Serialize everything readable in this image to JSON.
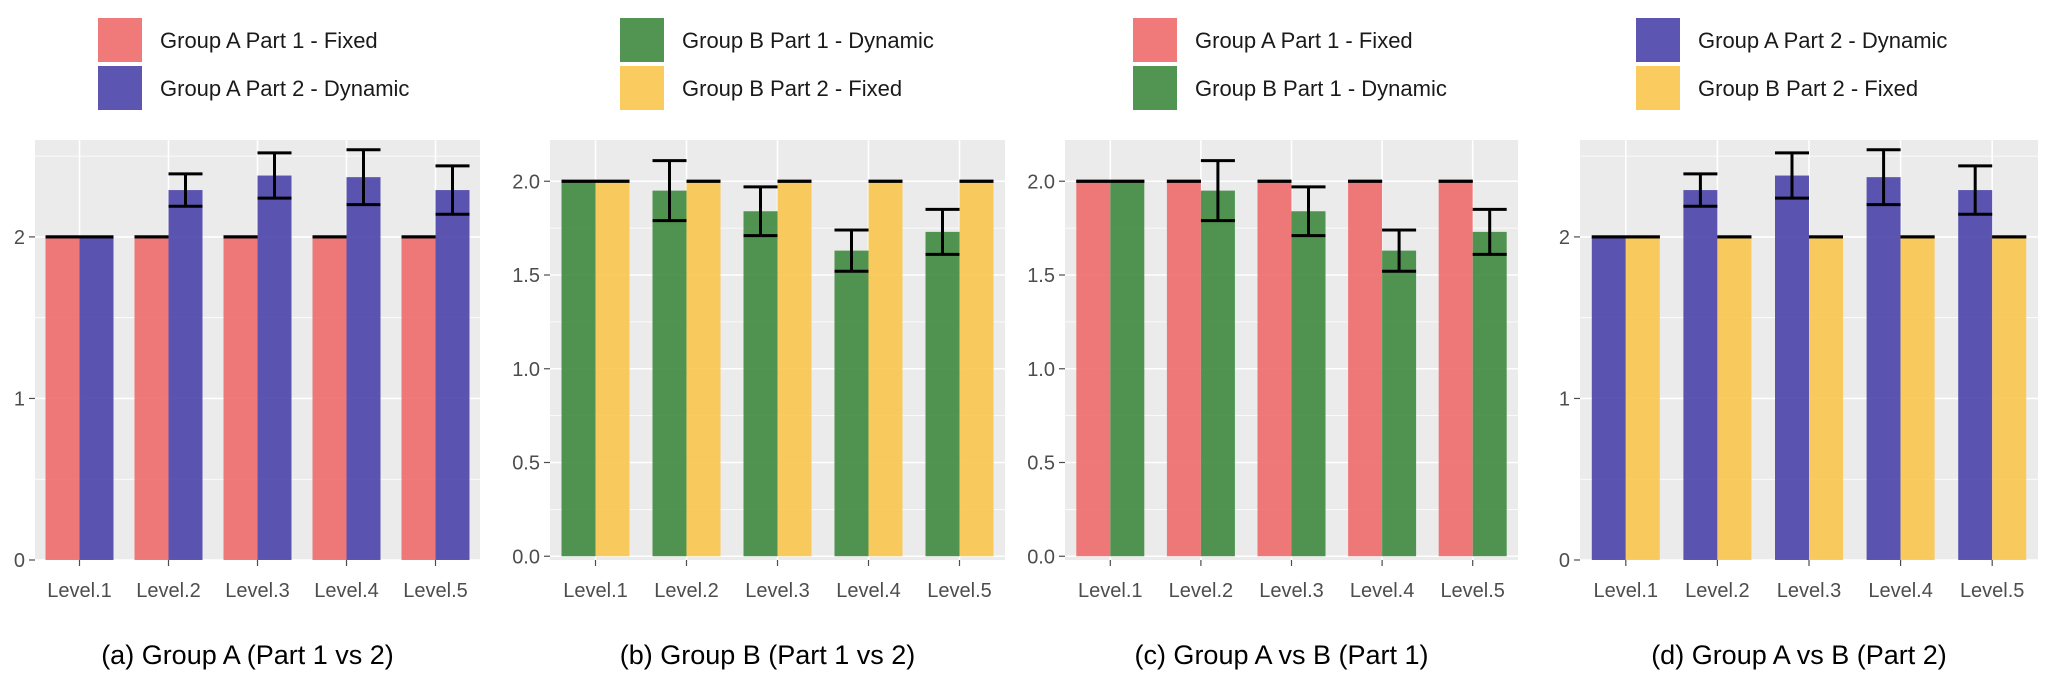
{
  "colors": {
    "a_fixed": "#ee6b6b",
    "a_dynamic": "#4a44aa",
    "b_dynamic": "#3f8a3f",
    "b_fixed": "#f9c74f"
  },
  "chart_data": [
    {
      "type": "bar",
      "caption": "(a) Group A (Part 1 vs 2)",
      "categories": [
        "Level.1",
        "Level.2",
        "Level.3",
        "Level.4",
        "Level.5"
      ],
      "ylim": [
        0,
        2.6
      ],
      "yticks": [
        0,
        1,
        2
      ],
      "ytick_labels": [
        "0",
        "1",
        "2"
      ],
      "grid": true,
      "legend_position": "top",
      "series": [
        {
          "name": "Group A Part 1 - Fixed",
          "color": "#ee6b6b",
          "values": [
            2,
            2,
            2,
            2,
            2
          ],
          "err": [
            0,
            0,
            0,
            0,
            0
          ]
        },
        {
          "name": "Group A Part 2 - Dynamic",
          "color": "#4a44aa",
          "values": [
            2,
            2.29,
            2.38,
            2.37,
            2.29
          ],
          "err": [
            0,
            0.1,
            0.14,
            0.17,
            0.15
          ]
        }
      ]
    },
    {
      "type": "bar",
      "caption": "(b) Group B (Part 1 vs 2)",
      "categories": [
        "Level.1",
        "Level.2",
        "Level.3",
        "Level.4",
        "Level.5"
      ],
      "ylim": [
        -0.02,
        2.22
      ],
      "yticks": [
        0,
        0.5,
        1,
        1.5,
        2
      ],
      "ytick_labels": [
        "0.0",
        "0.5",
        "1.0",
        "1.5",
        "2.0"
      ],
      "grid": true,
      "legend_position": "top",
      "series": [
        {
          "name": "Group B Part 1 - Dynamic",
          "color": "#3f8a3f",
          "values": [
            2,
            1.95,
            1.84,
            1.63,
            1.73
          ],
          "err": [
            0,
            0.16,
            0.13,
            0.11,
            0.12
          ]
        },
        {
          "name": "Group B Part 2 - Fixed",
          "color": "#f9c74f",
          "values": [
            2,
            2,
            2,
            2,
            2
          ],
          "err": [
            0,
            0,
            0,
            0,
            0
          ]
        }
      ]
    },
    {
      "type": "bar",
      "caption": "(c) Group A vs B (Part 1)",
      "categories": [
        "Level.1",
        "Level.2",
        "Level.3",
        "Level.4",
        "Level.5"
      ],
      "ylim": [
        -0.02,
        2.22
      ],
      "yticks": [
        0,
        0.5,
        1,
        1.5,
        2
      ],
      "ytick_labels": [
        "0.0",
        "0.5",
        "1.0",
        "1.5",
        "2.0"
      ],
      "grid": true,
      "legend_position": "top",
      "series": [
        {
          "name": "Group A Part 1 - Fixed",
          "color": "#ee6b6b",
          "values": [
            2,
            2,
            2,
            2,
            2
          ],
          "err": [
            0,
            0,
            0,
            0,
            0
          ]
        },
        {
          "name": "Group B Part 1 - Dynamic",
          "color": "#3f8a3f",
          "values": [
            2,
            1.95,
            1.84,
            1.63,
            1.73
          ],
          "err": [
            0,
            0.16,
            0.13,
            0.11,
            0.12
          ]
        }
      ]
    },
    {
      "type": "bar",
      "caption": "(d) Group A vs B (Part 2)",
      "categories": [
        "Level.1",
        "Level.2",
        "Level.3",
        "Level.4",
        "Level.5"
      ],
      "ylim": [
        0,
        2.6
      ],
      "yticks": [
        0,
        1,
        2
      ],
      "ytick_labels": [
        "0",
        "1",
        "2"
      ],
      "grid": true,
      "legend_position": "top",
      "series": [
        {
          "name": "Group A Part 2 - Dynamic",
          "color": "#4a44aa",
          "values": [
            2,
            2.29,
            2.38,
            2.37,
            2.29
          ],
          "err": [
            0,
            0.1,
            0.14,
            0.17,
            0.15
          ]
        },
        {
          "name": "Group B Part 2 - Fixed",
          "color": "#f9c74f",
          "values": [
            2,
            2,
            2,
            2,
            2
          ],
          "err": [
            0,
            0,
            0,
            0,
            0
          ]
        }
      ]
    }
  ]
}
